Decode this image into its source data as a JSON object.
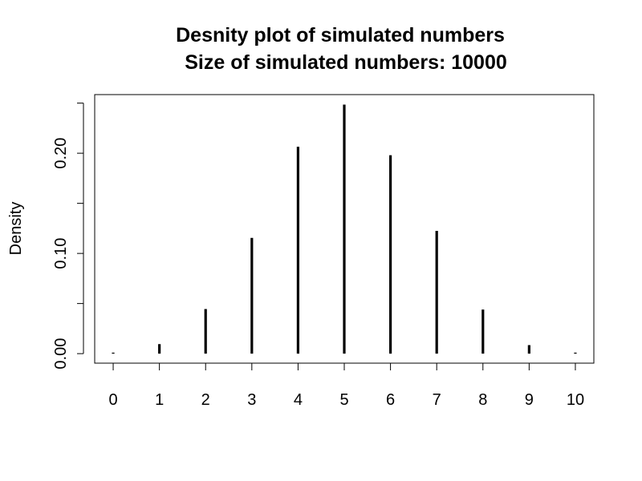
{
  "chart_data": {
    "type": "bar",
    "title": "Desnity plot of simulated numbers",
    "subtitle": "Size of simulated numbers: 10000",
    "xlabel": "",
    "ylabel": "Density",
    "categories": [
      "0",
      "1",
      "2",
      "3",
      "4",
      "5",
      "6",
      "7",
      "8",
      "9",
      "10"
    ],
    "x": [
      0,
      1,
      2,
      3,
      4,
      5,
      6,
      7,
      8,
      9,
      10
    ],
    "values": [
      0.001,
      0.0095,
      0.0445,
      0.1155,
      0.2065,
      0.2485,
      0.198,
      0.1225,
      0.044,
      0.0085,
      0.001
    ],
    "xlim": [
      -0.4,
      10.4
    ],
    "ylim": [
      -0.0095,
      0.2585
    ],
    "y_ticks": [
      0.0,
      0.05,
      0.1,
      0.15,
      0.2,
      0.25
    ],
    "y_tick_labels": [
      "0.00",
      "",
      "0.10",
      "",
      "0.20",
      ""
    ],
    "grid": false,
    "legend": "none"
  }
}
